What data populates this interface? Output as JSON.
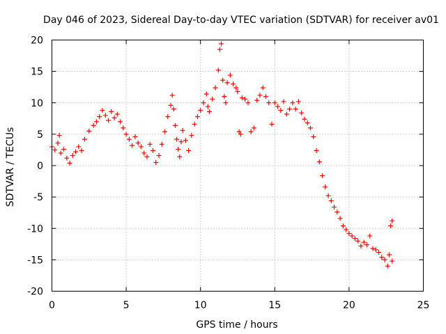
{
  "chart_data": {
    "type": "scatter",
    "title": "Day 046 of 2023, Sidereal Day-to-day VTEC variation (SDTVAR) for receiver av01",
    "xlabel": "GPS time / hours",
    "ylabel": "SDTVAR / TECUs",
    "xlim": [
      0,
      25
    ],
    "ylim": [
      -20,
      20
    ],
    "xticks": [
      0,
      5,
      10,
      15,
      20,
      25
    ],
    "yticks": [
      -20,
      -15,
      -10,
      -5,
      0,
      5,
      10,
      15,
      20
    ],
    "xtick_labels": [
      "0",
      "5",
      "10",
      "15",
      "20",
      "25"
    ],
    "ytick_labels": [
      "-20",
      "-15",
      "-10",
      "-5",
      "0",
      "5",
      "10",
      "15",
      "20"
    ],
    "grid": true,
    "marker": "+",
    "color": "#ff0000",
    "series": [
      {
        "name": "av01",
        "points": [
          [
            0.0,
            3.0
          ],
          [
            0.2,
            2.5
          ],
          [
            0.4,
            3.6
          ],
          [
            0.5,
            4.8
          ],
          [
            0.6,
            2.0
          ],
          [
            0.8,
            2.6
          ],
          [
            1.0,
            1.2
          ],
          [
            1.2,
            0.4
          ],
          [
            1.4,
            1.6
          ],
          [
            1.6,
            2.2
          ],
          [
            1.8,
            3.0
          ],
          [
            2.0,
            2.4
          ],
          [
            2.2,
            4.2
          ],
          [
            2.5,
            5.5
          ],
          [
            2.8,
            6.4
          ],
          [
            3.0,
            7.0
          ],
          [
            3.2,
            7.8
          ],
          [
            3.4,
            8.8
          ],
          [
            3.6,
            8.0
          ],
          [
            3.8,
            7.2
          ],
          [
            4.0,
            8.6
          ],
          [
            4.2,
            7.6
          ],
          [
            4.4,
            8.2
          ],
          [
            4.6,
            7.0
          ],
          [
            4.8,
            6.0
          ],
          [
            5.0,
            5.0
          ],
          [
            5.2,
            4.2
          ],
          [
            5.4,
            3.2
          ],
          [
            5.6,
            4.6
          ],
          [
            5.8,
            3.6
          ],
          [
            6.0,
            3.0
          ],
          [
            6.2,
            2.0
          ],
          [
            6.4,
            1.4
          ],
          [
            6.6,
            3.4
          ],
          [
            6.8,
            2.4
          ],
          [
            7.0,
            0.5
          ],
          [
            7.2,
            1.6
          ],
          [
            7.4,
            3.4
          ],
          [
            7.6,
            5.4
          ],
          [
            7.8,
            7.8
          ],
          [
            8.0,
            9.6
          ],
          [
            8.1,
            11.2
          ],
          [
            8.2,
            9.0
          ],
          [
            8.3,
            6.4
          ],
          [
            8.4,
            4.2
          ],
          [
            8.5,
            2.6
          ],
          [
            8.6,
            1.4
          ],
          [
            8.7,
            3.8
          ],
          [
            8.8,
            5.6
          ],
          [
            9.0,
            4.0
          ],
          [
            9.2,
            2.4
          ],
          [
            9.4,
            4.8
          ],
          [
            9.6,
            6.6
          ],
          [
            9.8,
            7.8
          ],
          [
            10.0,
            8.8
          ],
          [
            10.2,
            10.0
          ],
          [
            10.4,
            11.4
          ],
          [
            10.5,
            9.4
          ],
          [
            10.6,
            8.6
          ],
          [
            10.8,
            10.6
          ],
          [
            11.0,
            12.4
          ],
          [
            11.2,
            15.2
          ],
          [
            11.3,
            18.5
          ],
          [
            11.4,
            19.4
          ],
          [
            11.5,
            13.6
          ],
          [
            11.6,
            11.0
          ],
          [
            11.7,
            10.0
          ],
          [
            11.8,
            13.2
          ],
          [
            12.0,
            14.4
          ],
          [
            12.2,
            13.0
          ],
          [
            12.4,
            12.4
          ],
          [
            12.5,
            11.8
          ],
          [
            12.6,
            5.4
          ],
          [
            12.7,
            5.0
          ],
          [
            12.8,
            10.8
          ],
          [
            13.0,
            10.6
          ],
          [
            13.2,
            10.0
          ],
          [
            13.4,
            5.4
          ],
          [
            13.6,
            6.0
          ],
          [
            13.8,
            10.4
          ],
          [
            14.0,
            11.2
          ],
          [
            14.2,
            12.4
          ],
          [
            14.4,
            11.0
          ],
          [
            14.6,
            10.0
          ],
          [
            14.8,
            6.6
          ],
          [
            15.0,
            10.0
          ],
          [
            15.2,
            9.4
          ],
          [
            15.4,
            8.8
          ],
          [
            15.6,
            10.2
          ],
          [
            15.8,
            8.2
          ],
          [
            16.0,
            9.0
          ],
          [
            16.2,
            10.0
          ],
          [
            16.4,
            9.0
          ],
          [
            16.6,
            10.2
          ],
          [
            16.8,
            8.4
          ],
          [
            17.0,
            7.4
          ],
          [
            17.2,
            6.8
          ],
          [
            17.4,
            6.0
          ],
          [
            17.6,
            4.6
          ],
          [
            17.8,
            2.4
          ],
          [
            18.0,
            0.6
          ],
          [
            18.2,
            -1.6
          ],
          [
            18.4,
            -3.4
          ],
          [
            18.6,
            -4.8
          ],
          [
            18.8,
            -5.6
          ],
          [
            19.0,
            -6.6
          ],
          [
            19.2,
            -7.4
          ],
          [
            19.4,
            -8.4
          ],
          [
            19.6,
            -9.6
          ],
          [
            19.8,
            -10.2
          ],
          [
            20.0,
            -10.8
          ],
          [
            20.2,
            -11.2
          ],
          [
            20.4,
            -11.6
          ],
          [
            20.6,
            -12.0
          ],
          [
            20.8,
            -12.8
          ],
          [
            21.0,
            -12.2
          ],
          [
            21.2,
            -12.6
          ],
          [
            21.4,
            -11.2
          ],
          [
            21.6,
            -13.2
          ],
          [
            21.8,
            -13.4
          ],
          [
            22.0,
            -13.8
          ],
          [
            22.2,
            -14.6
          ],
          [
            22.4,
            -15.0
          ],
          [
            22.6,
            -16.0
          ],
          [
            22.7,
            -14.2
          ],
          [
            22.8,
            -9.6
          ],
          [
            22.9,
            -8.8
          ],
          [
            22.9,
            -15.2
          ]
        ]
      }
    ]
  }
}
